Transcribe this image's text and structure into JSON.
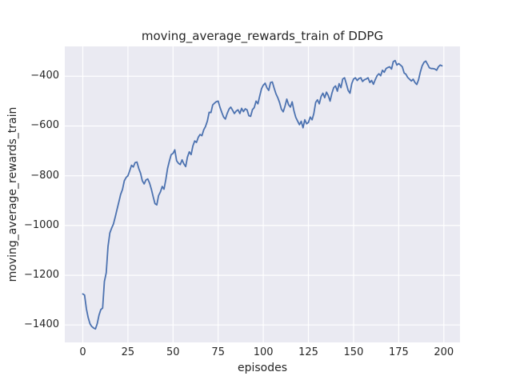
{
  "figure": {
    "background": "#ffffff",
    "axes_background": "#eaeaf2",
    "grid_color": "#ffffff",
    "text_color": "#262626"
  },
  "chart_data": {
    "type": "line",
    "title": "moving_average_rewards_train of DDPG",
    "xlabel": "episodes",
    "ylabel": "moving_average_rewards_train",
    "xlim": [
      -9.95,
      208.95
    ],
    "ylim": [
      -1470,
      -280
    ],
    "grid": true,
    "legend_position": "none",
    "xticks": [
      0,
      25,
      50,
      75,
      100,
      125,
      150,
      175,
      200
    ],
    "xtick_labels": [
      "0",
      "25",
      "50",
      "75",
      "100",
      "125",
      "150",
      "175",
      "200"
    ],
    "yticks": [
      -1400,
      -1200,
      -1000,
      -800,
      -600,
      -400
    ],
    "ytick_labels": [
      "−1400",
      "−1200",
      "−1000",
      "−800",
      "−600",
      "−400"
    ],
    "series": [
      {
        "name": "moving_average_rewards_train",
        "color": "#4c72b0",
        "line_width": 1.8,
        "x": [
          0,
          1,
          2,
          3,
          4,
          5,
          6,
          7,
          8,
          9,
          10,
          11,
          12,
          13,
          14,
          15,
          16,
          17,
          18,
          19,
          20,
          21,
          22,
          23,
          24,
          25,
          26,
          27,
          28,
          29,
          30,
          31,
          32,
          33,
          34,
          35,
          36,
          37,
          38,
          39,
          40,
          41,
          42,
          43,
          44,
          45,
          46,
          47,
          48,
          49,
          50,
          51,
          52,
          53,
          54,
          55,
          56,
          57,
          58,
          59,
          60,
          61,
          62,
          63,
          64,
          65,
          66,
          67,
          68,
          69,
          70,
          71,
          72,
          73,
          74,
          75,
          76,
          77,
          78,
          79,
          80,
          81,
          82,
          83,
          84,
          85,
          86,
          87,
          88,
          89,
          90,
          91,
          92,
          93,
          94,
          95,
          96,
          97,
          98,
          99,
          100,
          101,
          102,
          103,
          104,
          105,
          106,
          107,
          108,
          109,
          110,
          111,
          112,
          113,
          114,
          115,
          116,
          117,
          118,
          119,
          120,
          121,
          122,
          123,
          124,
          125,
          126,
          127,
          128,
          129,
          130,
          131,
          132,
          133,
          134,
          135,
          136,
          137,
          138,
          139,
          140,
          141,
          142,
          143,
          144,
          145,
          146,
          147,
          148,
          149,
          150,
          151,
          152,
          153,
          154,
          155,
          156,
          157,
          158,
          159,
          160,
          161,
          162,
          163,
          164,
          165,
          166,
          167,
          168,
          169,
          170,
          171,
          172,
          173,
          174,
          175,
          176,
          177,
          178,
          179,
          180,
          181,
          182,
          183,
          184,
          185,
          186,
          187,
          188,
          189,
          190,
          191,
          192,
          193,
          194,
          195,
          196,
          197,
          198,
          199
        ],
        "y": [
          -1275,
          -1280,
          -1335,
          -1370,
          -1395,
          -1406,
          -1412,
          -1416,
          -1395,
          -1360,
          -1338,
          -1332,
          -1225,
          -1190,
          -1085,
          -1030,
          -1010,
          -994,
          -965,
          -935,
          -905,
          -875,
          -855,
          -820,
          -807,
          -800,
          -780,
          -758,
          -765,
          -747,
          -745,
          -770,
          -790,
          -820,
          -833,
          -817,
          -813,
          -830,
          -854,
          -885,
          -912,
          -917,
          -880,
          -865,
          -843,
          -854,
          -815,
          -770,
          -740,
          -715,
          -710,
          -696,
          -740,
          -750,
          -755,
          -736,
          -752,
          -763,
          -725,
          -704,
          -715,
          -680,
          -660,
          -666,
          -645,
          -634,
          -639,
          -615,
          -602,
          -580,
          -545,
          -546,
          -515,
          -508,
          -502,
          -500,
          -525,
          -545,
          -564,
          -572,
          -550,
          -532,
          -524,
          -537,
          -550,
          -540,
          -535,
          -550,
          -529,
          -542,
          -531,
          -535,
          -559,
          -561,
          -534,
          -526,
          -500,
          -511,
          -480,
          -450,
          -436,
          -428,
          -446,
          -457,
          -425,
          -423,
          -448,
          -470,
          -486,
          -505,
          -532,
          -543,
          -521,
          -492,
          -514,
          -524,
          -503,
          -540,
          -565,
          -580,
          -595,
          -581,
          -607,
          -575,
          -591,
          -586,
          -564,
          -575,
          -550,
          -505,
          -495,
          -511,
          -482,
          -468,
          -486,
          -464,
          -478,
          -500,
          -468,
          -446,
          -439,
          -460,
          -430,
          -446,
          -411,
          -406,
          -430,
          -457,
          -468,
          -430,
          -411,
          -406,
          -417,
          -409,
          -406,
          -421,
          -414,
          -411,
          -406,
          -425,
          -417,
          -432,
          -414,
          -398,
          -390,
          -398,
          -376,
          -384,
          -369,
          -365,
          -362,
          -371,
          -341,
          -337,
          -355,
          -349,
          -355,
          -362,
          -387,
          -392,
          -405,
          -412,
          -419,
          -412,
          -425,
          -433,
          -414,
          -382,
          -358,
          -344,
          -339,
          -352,
          -366,
          -369,
          -369,
          -371,
          -376,
          -362,
          -355,
          -358
        ]
      }
    ]
  }
}
